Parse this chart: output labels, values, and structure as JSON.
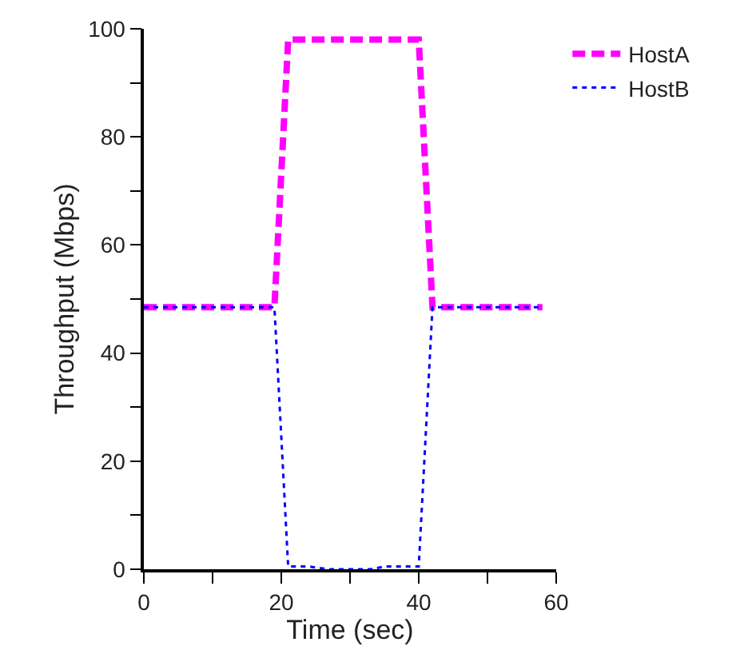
{
  "chart_data": {
    "type": "line",
    "xlabel": "Time (sec)",
    "ylabel": "Throughput (Mbps)",
    "xlim": [
      0,
      60
    ],
    "ylim": [
      0,
      100
    ],
    "xticks": [
      0,
      {
        "value": 10,
        "label": null
      },
      20,
      {
        "value": 30,
        "label": null
      },
      40,
      {
        "value": 50,
        "label": null
      },
      60
    ],
    "yticks": [
      0,
      {
        "value": 10,
        "label": null
      },
      20,
      {
        "value": 30,
        "label": null
      },
      40,
      {
        "value": 50,
        "label": null
      },
      60,
      {
        "value": 70,
        "label": null
      },
      80,
      {
        "value": 90,
        "label": null
      },
      100
    ],
    "legend": "top right",
    "marker": "none",
    "series": [
      {
        "name": "HostA",
        "color": "#ff00ff",
        "line_style": "dashed",
        "x": [
          0,
          19,
          21,
          40,
          42,
          58
        ],
        "values": [
          48.5,
          48.5,
          98,
          98,
          48.5,
          48.5
        ]
      },
      {
        "name": "HostB",
        "color": "#0000ff",
        "line_style": "dotted",
        "x": [
          0,
          19,
          21,
          24,
          27,
          33,
          35,
          40,
          42,
          58
        ],
        "values": [
          48.5,
          48.5,
          0.5,
          0.5,
          0,
          0,
          0.5,
          0.5,
          48.5,
          48.5
        ]
      }
    ]
  }
}
